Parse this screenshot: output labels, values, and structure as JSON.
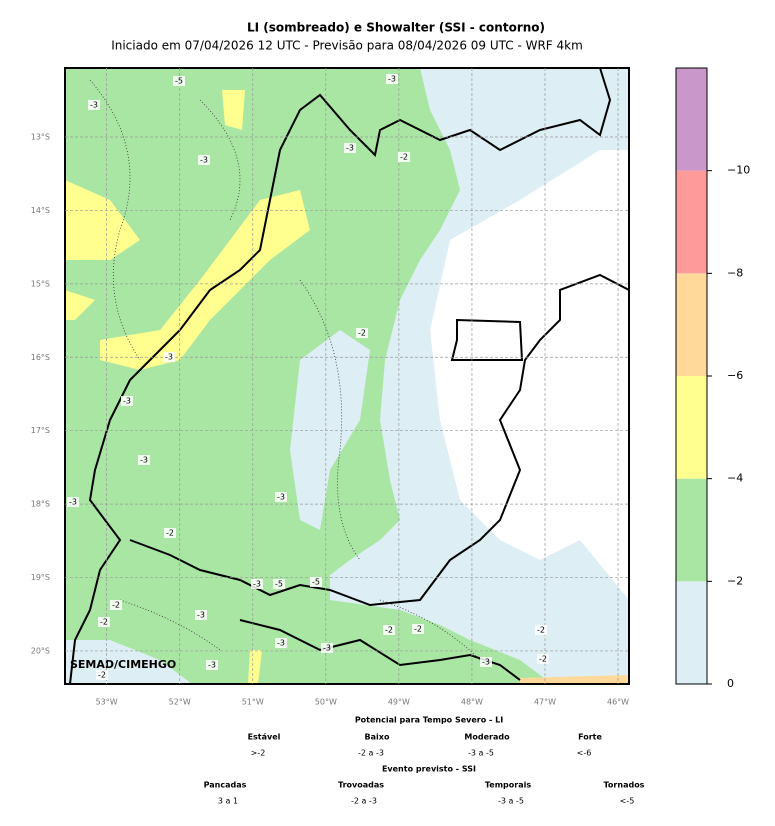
{
  "header": {
    "title": "LI (sombreado) e Showalter (SSI - contorno)",
    "subtitle": "Iniciado em 07/04/2026 12 UTC - Previsão para 08/04/2026 09 UTC - WRF 4km"
  },
  "map": {
    "xlim": [
      -53.57,
      -45.85
    ],
    "ylim": [
      -20.45,
      -12.06
    ],
    "xticks": [
      {
        "value": -53,
        "label": "53°W"
      },
      {
        "value": -52,
        "label": "52°W"
      },
      {
        "value": -51,
        "label": "51°W"
      },
      {
        "value": -50,
        "label": "50°W"
      },
      {
        "value": -49,
        "label": "49°W"
      },
      {
        "value": -48,
        "label": "48°W"
      },
      {
        "value": -47,
        "label": "47°W"
      },
      {
        "value": -46,
        "label": "46°W"
      }
    ],
    "yticks": [
      {
        "value": -13,
        "label": "13°S"
      },
      {
        "value": -14,
        "label": "14°S"
      },
      {
        "value": -15,
        "label": "15°S"
      },
      {
        "value": -16,
        "label": "16°S"
      },
      {
        "value": -17,
        "label": "17°S"
      },
      {
        "value": -18,
        "label": "18°S"
      },
      {
        "value": -19,
        "label": "19°S"
      },
      {
        "value": -20,
        "label": "20°S"
      }
    ],
    "grid": true,
    "credit": "SEMAD/CIMEHGO",
    "contour_labels": [
      "-5",
      "-3",
      "-3",
      "-3",
      "-2",
      "-3",
      "-2",
      "-3",
      "-3",
      "-3",
      "-3",
      "-3",
      "-2",
      "-3",
      "-5",
      "-5",
      "-2",
      "-3",
      "-2",
      "-3",
      "-3",
      "-2",
      "-3",
      "-2",
      "-3",
      "-2",
      "-2",
      "-2"
    ]
  },
  "colorbar": {
    "lim": [
      0,
      -12
    ],
    "bounds": [
      0,
      -2,
      -4,
      -6,
      -8,
      -10,
      -12
    ],
    "colors": [
      "#ddeef5",
      "#a9e6a3",
      "#ffff8f",
      "#ffd99a",
      "#ff9a9a",
      "#c997c9"
    ],
    "ticks": [
      {
        "value": 0,
        "label": "0"
      },
      {
        "value": -2,
        "label": "−2"
      },
      {
        "value": -4,
        "label": "−4"
      },
      {
        "value": -6,
        "label": "−6"
      },
      {
        "value": -8,
        "label": "−8"
      },
      {
        "value": -10,
        "label": "−10"
      }
    ]
  },
  "legend": {
    "li_title": "Potencial para Tempo Severo - LI",
    "li_names": [
      "Estável",
      "Baixo",
      "Moderado",
      "Forte"
    ],
    "li_ranges": [
      ">-2",
      "-2 a -3",
      "-3 a -5",
      "<-6"
    ],
    "ssi_title": "Evento previsto - SSI",
    "ssi_names": [
      "Pancadas",
      "Trovoadas",
      "Temporais",
      "Tornados"
    ],
    "ssi_ranges": [
      "3 a 1",
      "-2 a -3",
      "-3 a -5",
      "<-5"
    ]
  }
}
